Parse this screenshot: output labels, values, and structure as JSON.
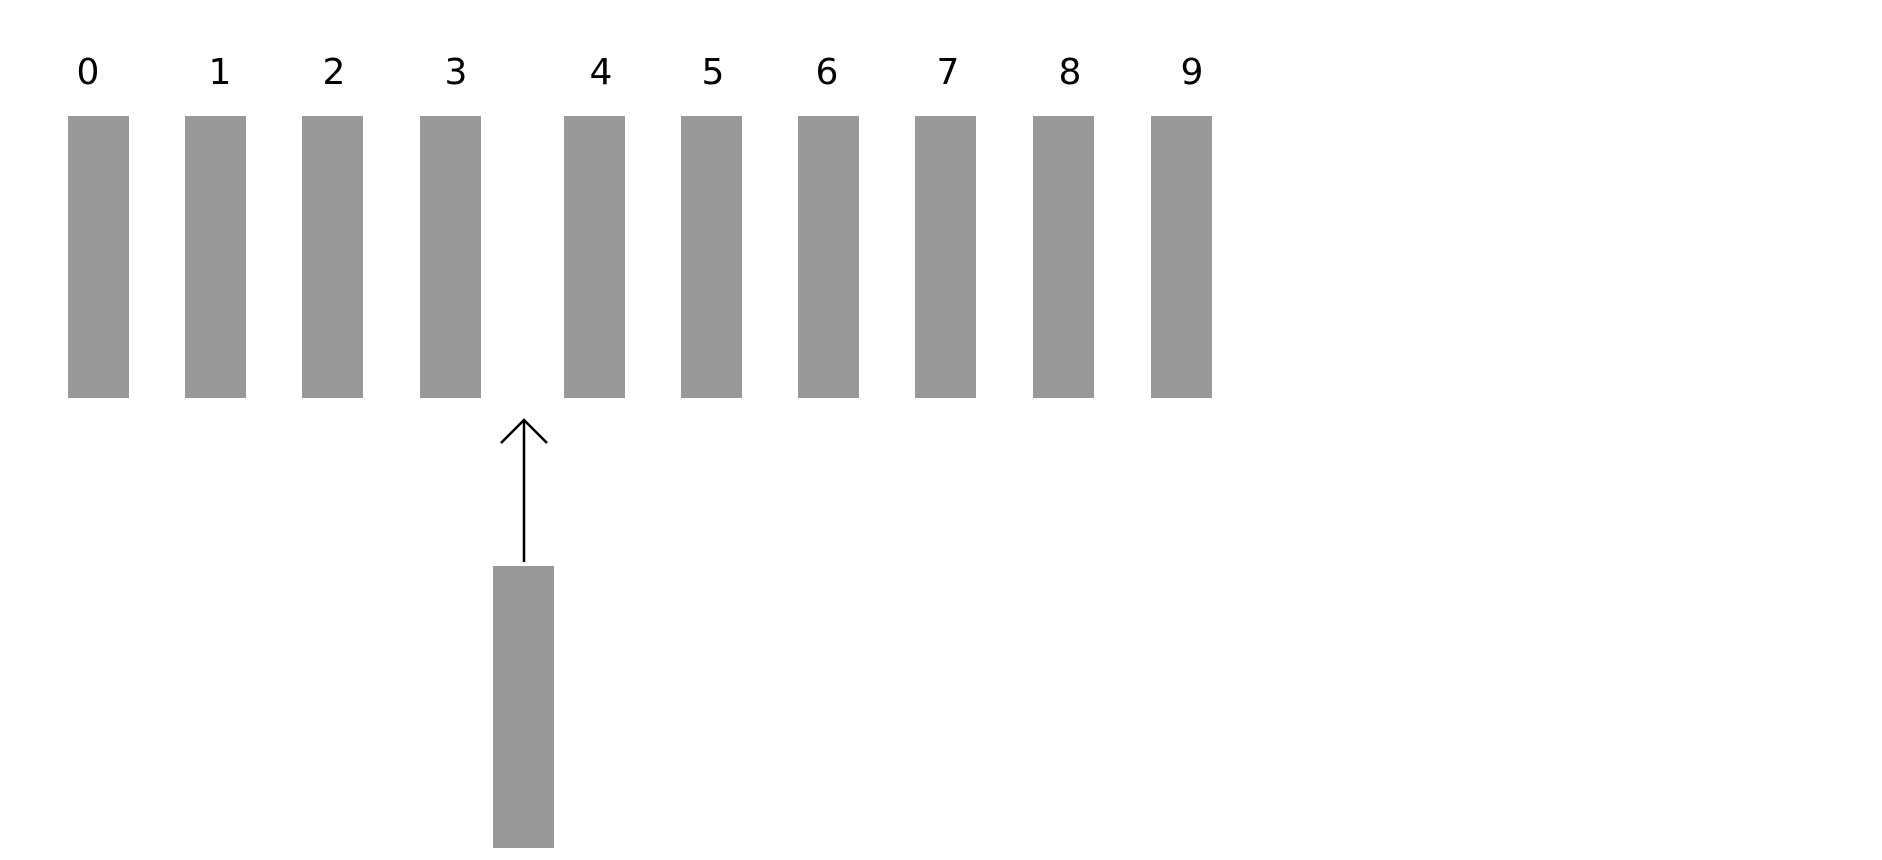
{
  "diagram": {
    "slot_labels": [
      "0",
      "1",
      "2",
      "3",
      "4",
      "5",
      "6",
      "7",
      "8",
      "9"
    ],
    "arrow_direction": "up",
    "colors": {
      "bar": "#999999",
      "arrow": "#000000",
      "background": "#ffffff"
    }
  }
}
